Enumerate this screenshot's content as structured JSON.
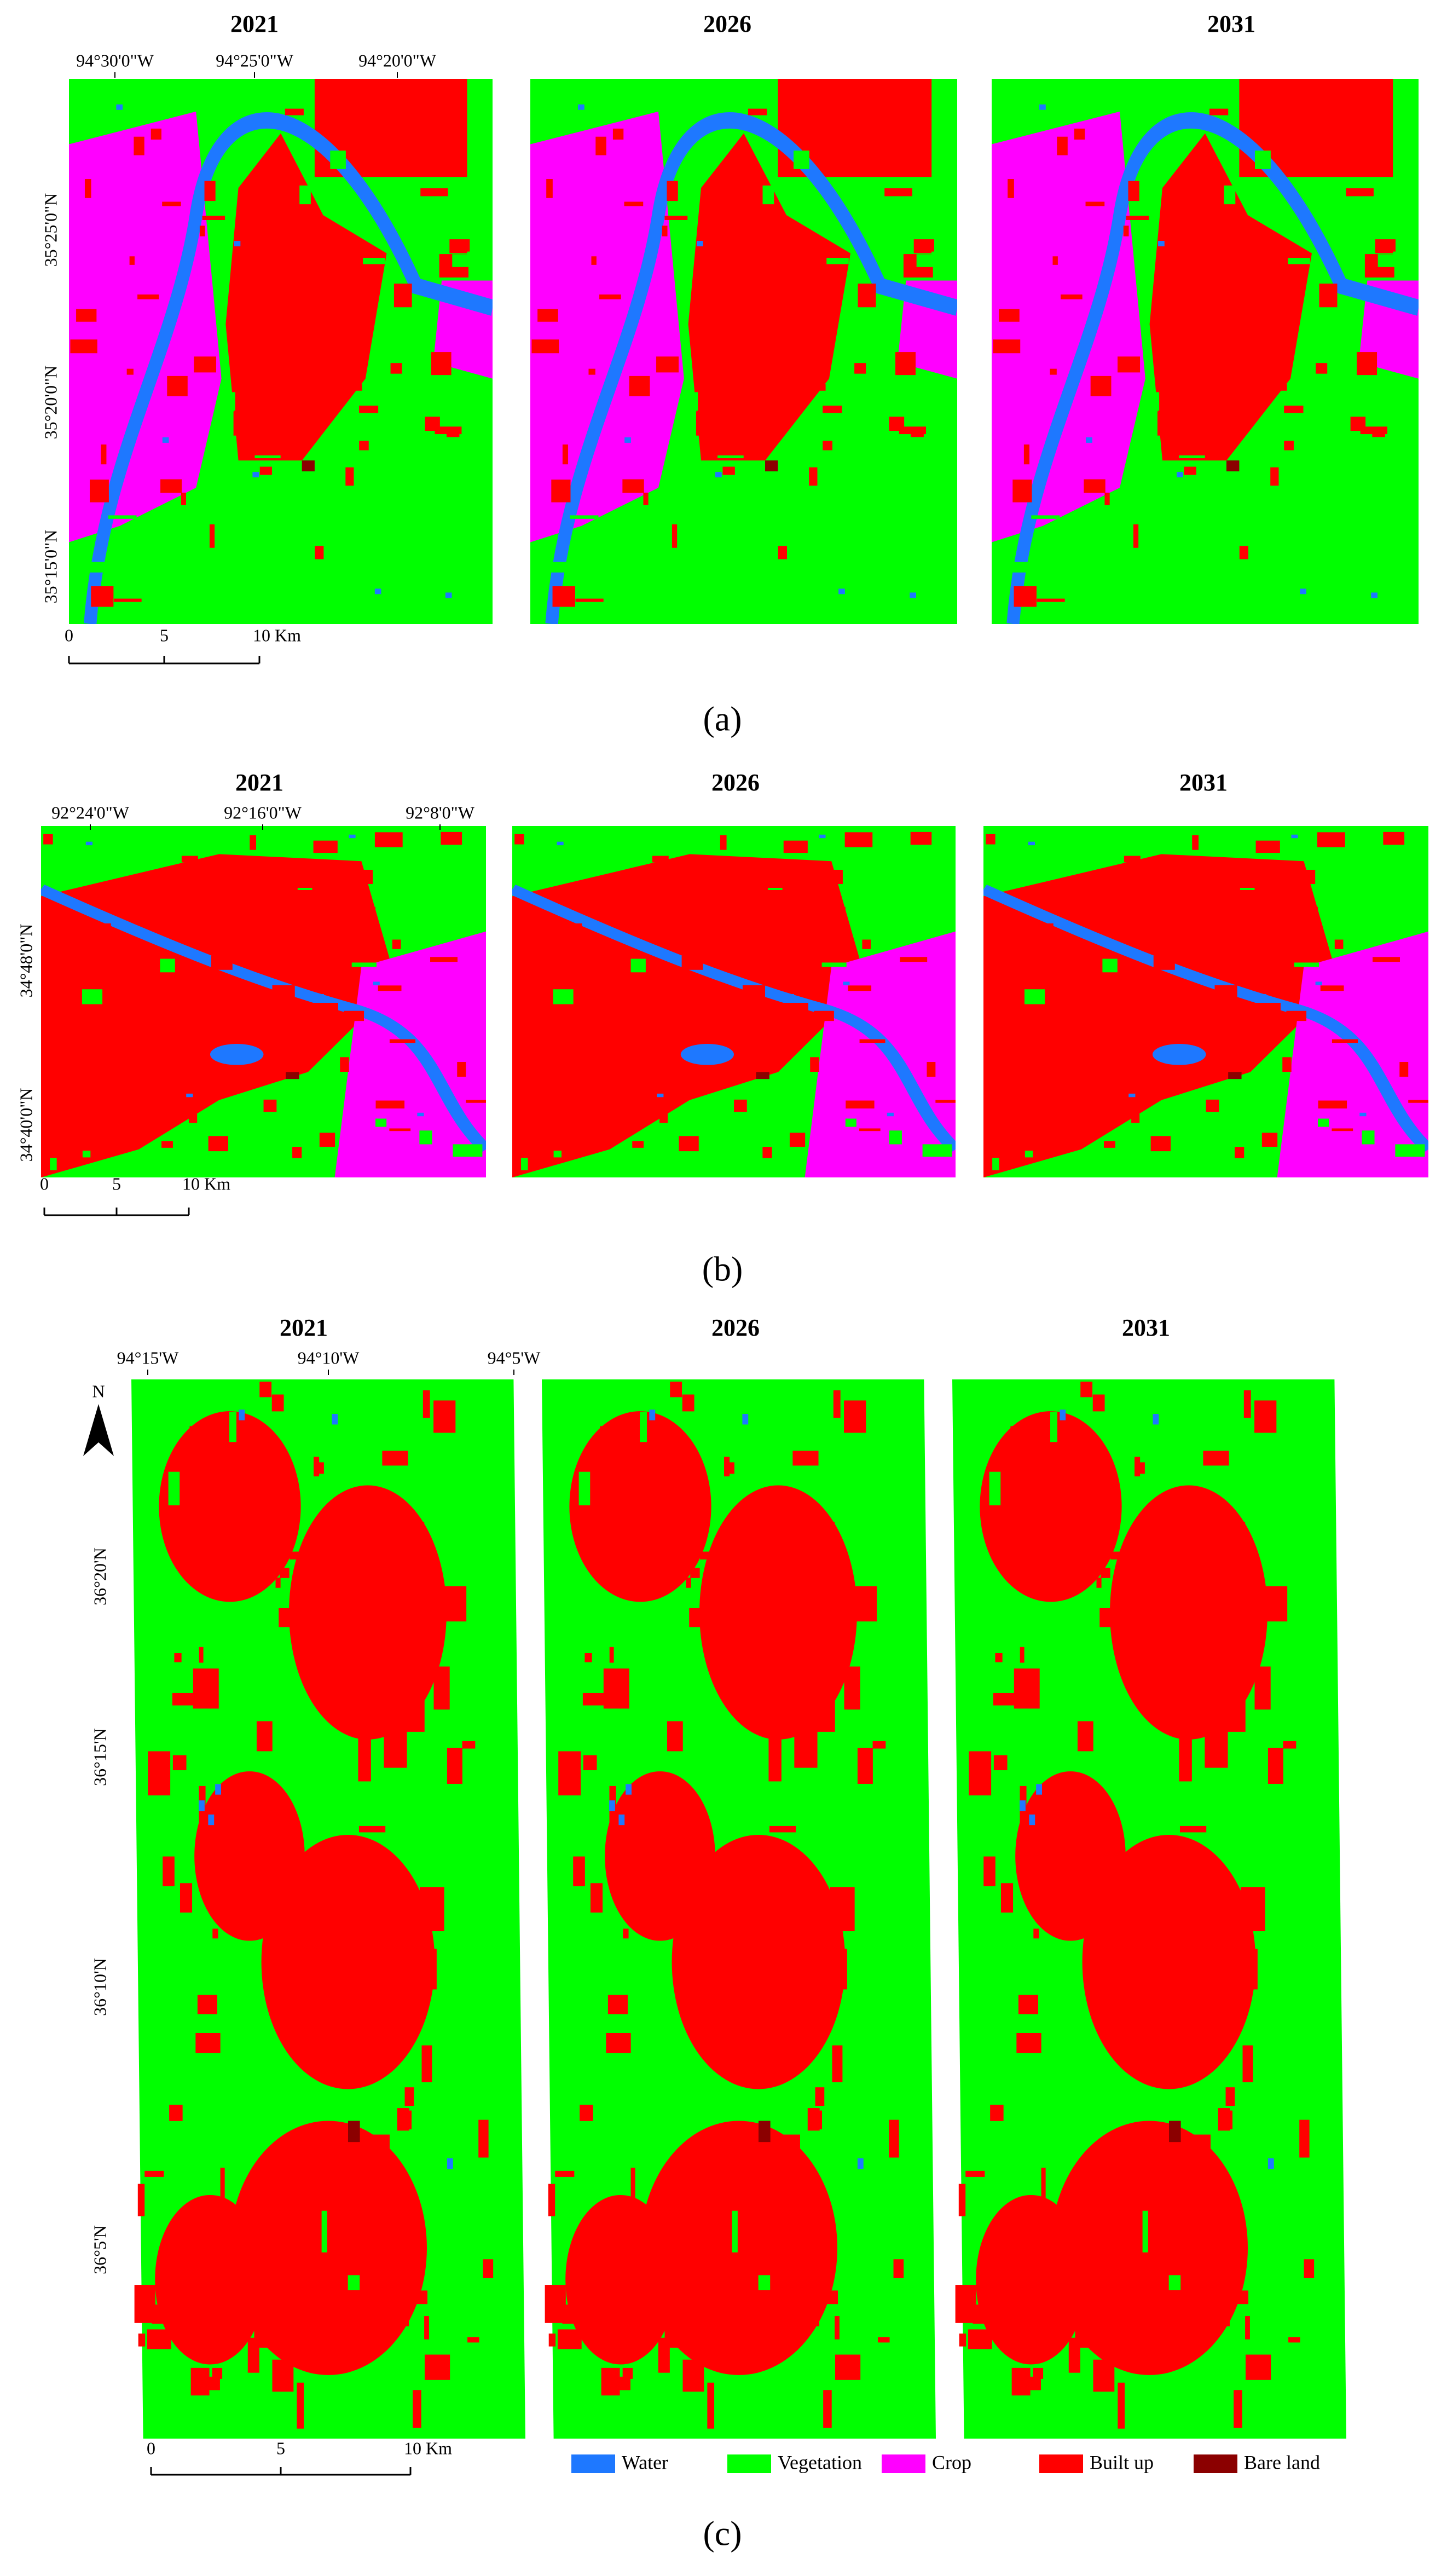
{
  "panels": [
    {
      "label": "(a)",
      "years": [
        "2021",
        "2026",
        "2031"
      ],
      "x_labels": [
        "94°30'0\"W",
        "94°25'0\"W",
        "94°20'0\"W"
      ],
      "y_labels": [
        "35°25'0\"N",
        "35°20'0\"N",
        "35°15'0\"N"
      ],
      "scale": [
        "0",
        "5",
        "10 Km"
      ]
    },
    {
      "label": "(b)",
      "years": [
        "2021",
        "2026",
        "2031"
      ],
      "x_labels": [
        "92°24'0\"W",
        "92°16'0\"W",
        "92°8'0\"W"
      ],
      "y_labels": [
        "34°48'0\"N",
        "34°40'0\"N"
      ],
      "scale": [
        "0",
        "5",
        "10 Km"
      ]
    },
    {
      "label": "(c)",
      "years": [
        "2021",
        "2026",
        "2031"
      ],
      "x_labels": [
        "94°15'W",
        "94°10'W",
        "94°5'W"
      ],
      "y_labels": [
        "36°20'N",
        "36°15'N",
        "36°10'N",
        "36°5'N"
      ],
      "scale": [
        "0",
        "5",
        "10 Km"
      ],
      "north": "N"
    }
  ],
  "legend": [
    {
      "name": "Water",
      "color": "#1e78ff"
    },
    {
      "name": "Vegetation",
      "color": "#00ff00"
    },
    {
      "name": "Crop",
      "color": "#ff00ff"
    },
    {
      "name": "Built up",
      "color": "#ff0000"
    },
    {
      "name": "Bare land",
      "color": "#8b0000"
    }
  ]
}
